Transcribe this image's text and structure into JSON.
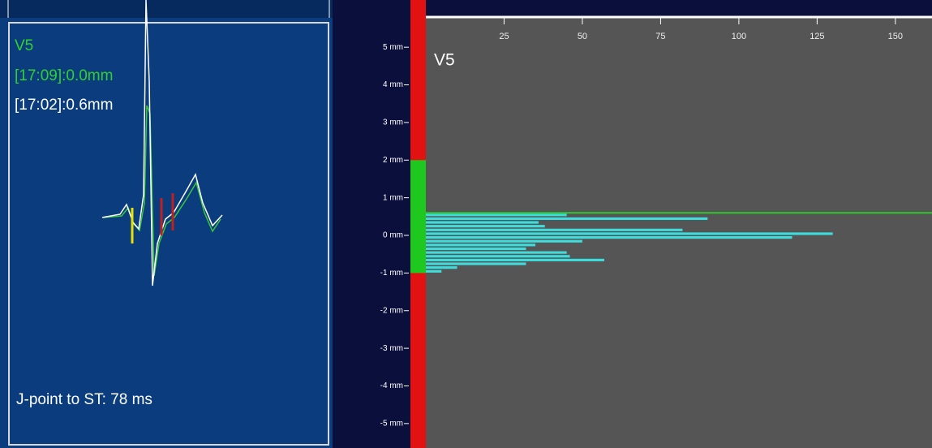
{
  "ecg_panel": {
    "lead": "V5",
    "current": "[17:09]:0.0mm",
    "reference": "[17:02]:0.6mm",
    "footer": "J-point to ST: 78 ms"
  },
  "chart_data": {
    "type": "histogram",
    "title": "V5",
    "bins": [
      -1.0,
      -0.9,
      -0.8,
      -0.7,
      -0.6,
      -0.5,
      -0.4,
      -0.3,
      -0.2,
      -0.1,
      0.0,
      0.1,
      0.2,
      0.3,
      0.4,
      0.5,
      0.6
    ],
    "values": [
      5,
      10,
      32,
      57,
      46,
      45,
      32,
      35,
      50,
      117,
      130,
      82,
      38,
      36,
      90,
      45
    ],
    "color": "#3fdcdc",
    "xlim": [
      0,
      161.7
    ],
    "xticks": [
      25,
      50,
      75,
      100,
      125,
      150
    ],
    "ylim": [
      -5.65,
      5.78
    ],
    "yticks": [
      {
        "value": 5,
        "label": "5 mm"
      },
      {
        "value": 4,
        "label": "4 mm"
      },
      {
        "value": 3,
        "label": "3 mm"
      },
      {
        "value": 2,
        "label": "2 mm"
      },
      {
        "value": 1,
        "label": "1 mm"
      },
      {
        "value": 0,
        "label": "0 mm"
      },
      {
        "value": -1,
        "label": "-1 mm"
      },
      {
        "value": -2,
        "label": "-2 mm"
      },
      {
        "value": -3,
        "label": "-3 mm"
      },
      {
        "value": -4,
        "label": "-4 mm"
      },
      {
        "value": -5,
        "label": "-5 mm"
      }
    ],
    "normal_range": [
      -1,
      2
    ],
    "normal_color": "#1ec81e",
    "out_color": "#e31212",
    "marker": 0.6,
    "marker_color": "#2ec82e"
  }
}
